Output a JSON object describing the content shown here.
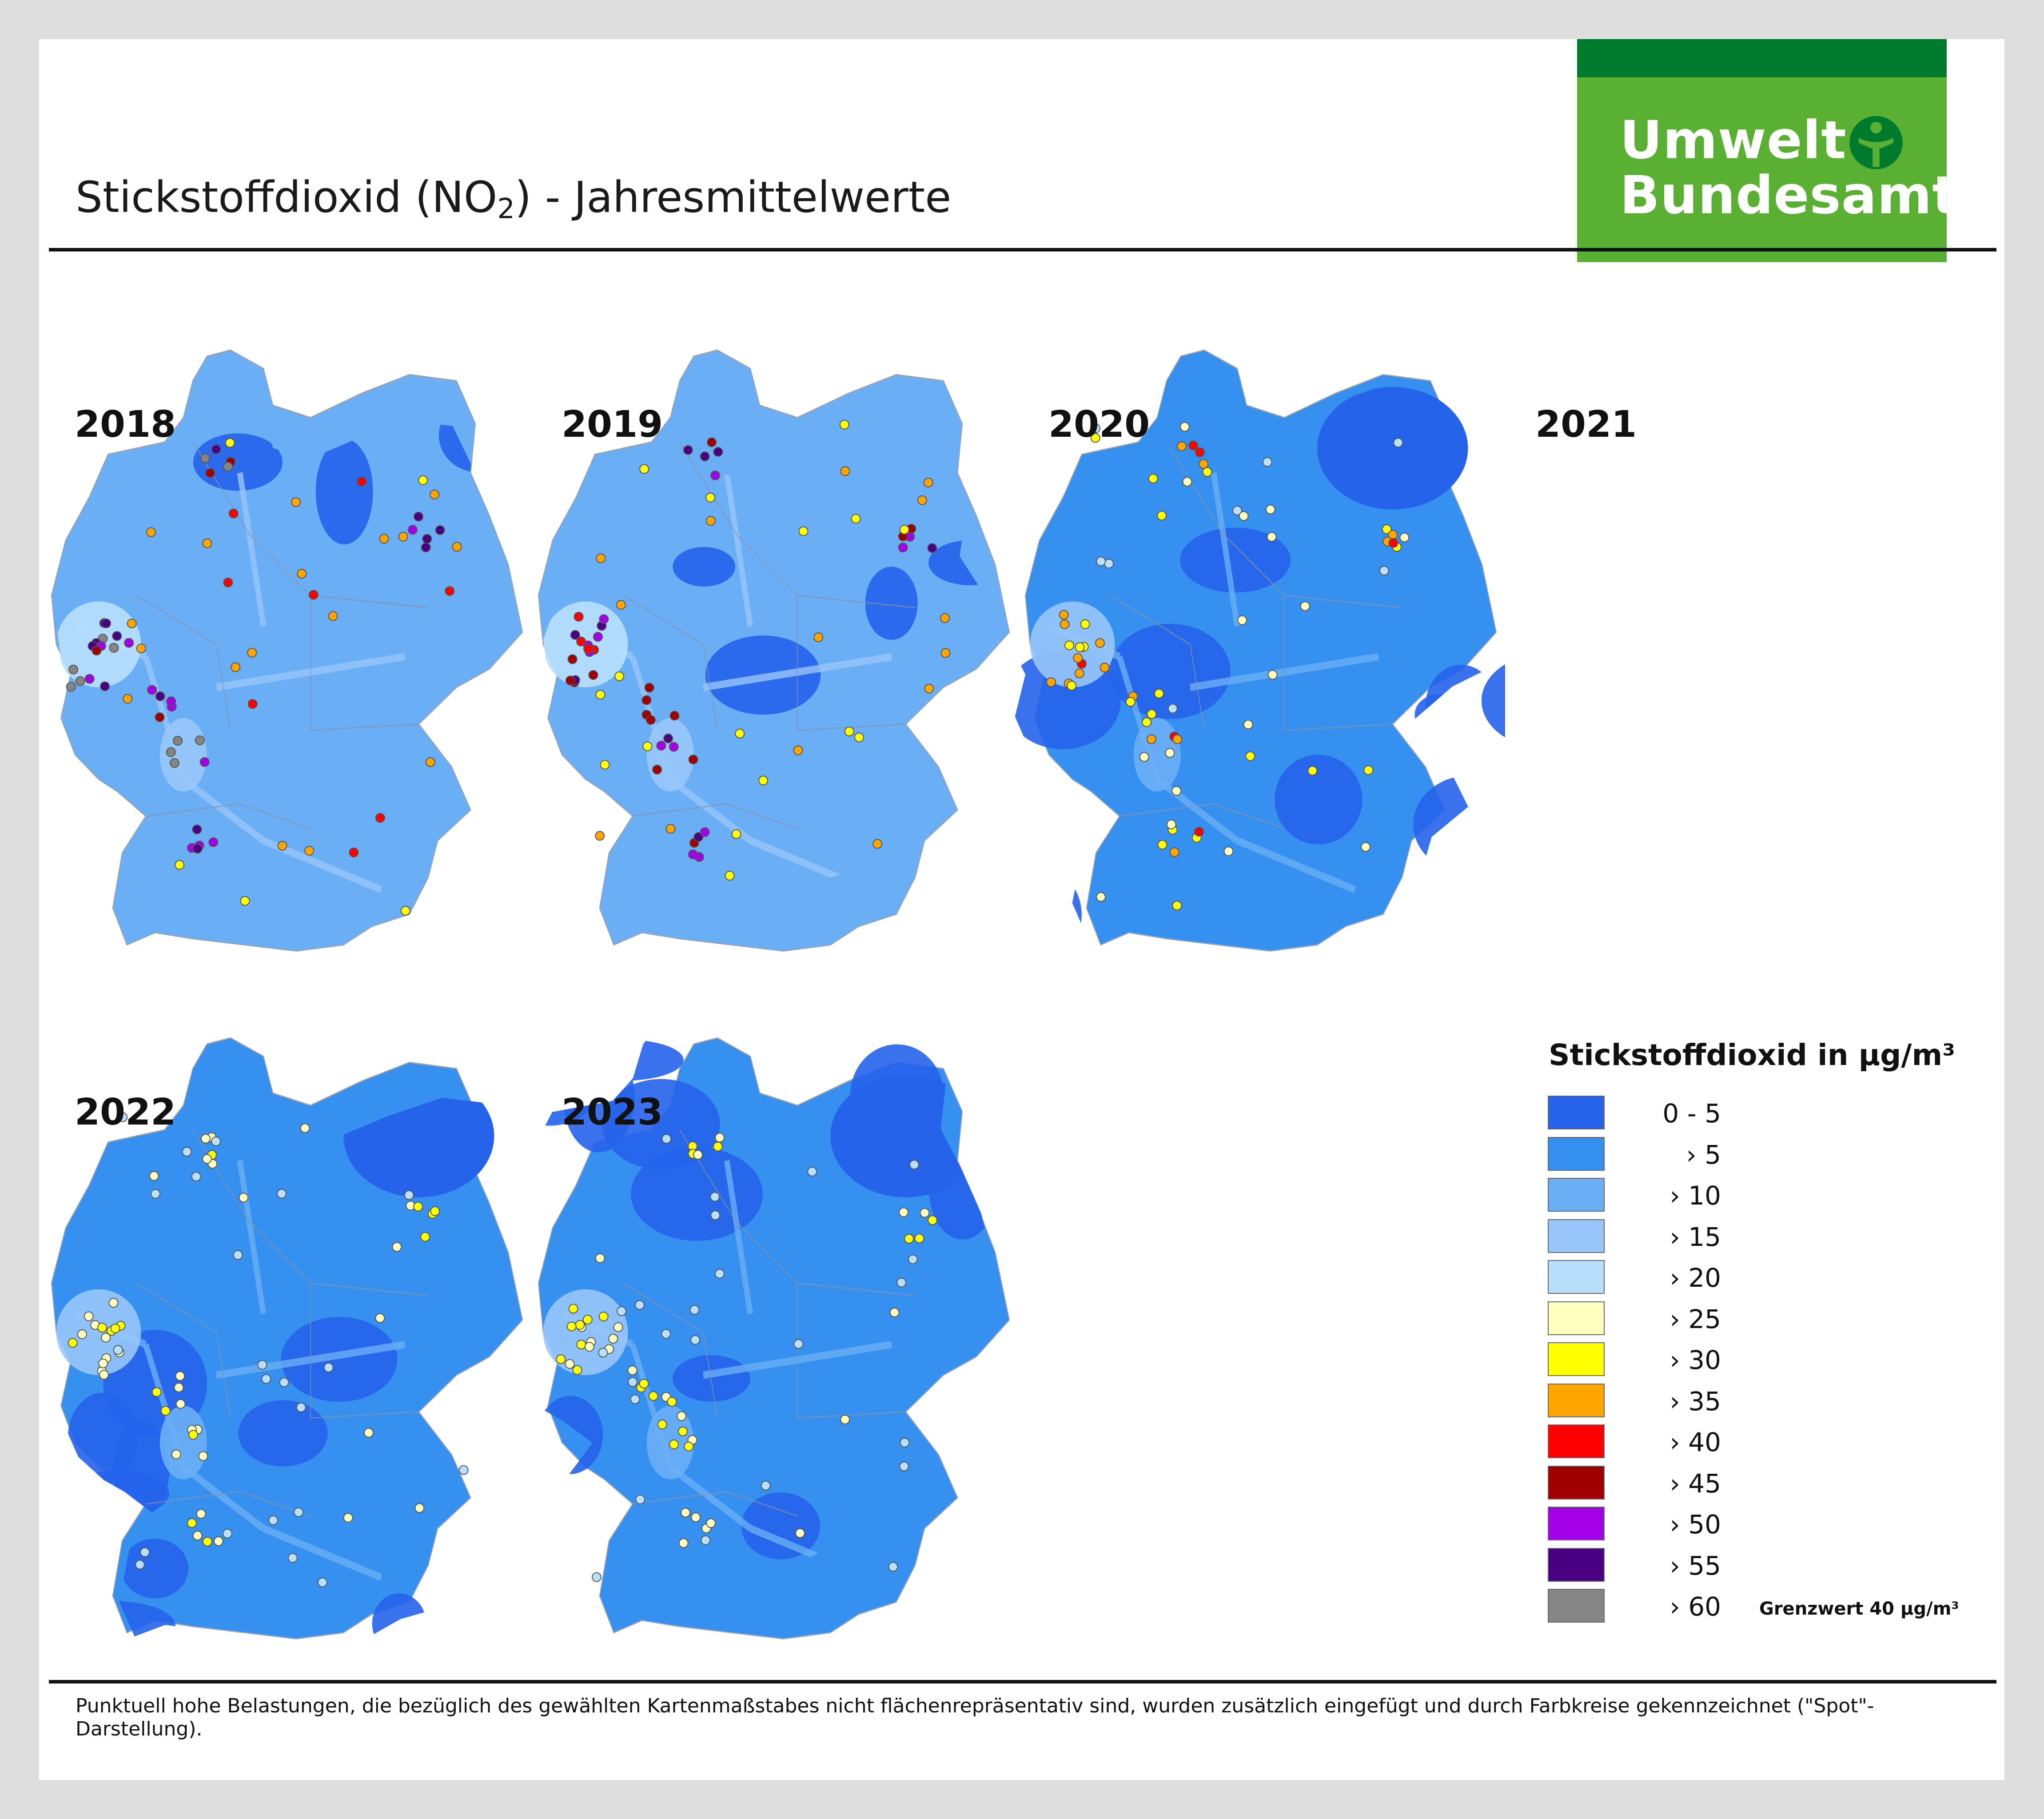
{
  "header": {
    "title_main": "Stickstoffdioxid (NO",
    "title_sub": "2",
    "title_end": ") - Jahresmittelwerte"
  },
  "logo": {
    "line1": "Umwelt",
    "line2": "Bundesamt",
    "figure_icon": "human-figure-in-circle-icon"
  },
  "maps": [
    {
      "year": "2018",
      "level": 6
    },
    {
      "year": "2019",
      "level": 5
    },
    {
      "year": "2020",
      "level": 2
    },
    {
      "year": "2021",
      "level": 1
    },
    {
      "year": "2022",
      "level": 0
    },
    {
      "year": "2023",
      "level": 0
    }
  ],
  "legend": {
    "title": "Stickstoffdioxid in µg/m³",
    "classes": [
      {
        "label": "0 - 5",
        "color": "#2563eb"
      },
      {
        "label": "› 5",
        "color": "#3590f0"
      },
      {
        "label": "› 10",
        "color": "#6aaef6"
      },
      {
        "label": "› 15",
        "color": "#98c6fb"
      },
      {
        "label": "› 20",
        "color": "#b8e0fd"
      },
      {
        "label": "› 25",
        "color": "#ffffc0"
      },
      {
        "label": "› 30",
        "color": "#ffff00"
      },
      {
        "label": "› 35",
        "color": "#ffa500"
      },
      {
        "label": "› 40",
        "color": "#ff0000"
      },
      {
        "label": "› 45",
        "color": "#a00000"
      },
      {
        "label": "› 50",
        "color": "#a400e8"
      },
      {
        "label": "› 55",
        "color": "#4a0082"
      },
      {
        "label": "› 60",
        "color": "#858585"
      }
    ],
    "limit_note": "Grenzwert 40 µg/m³"
  },
  "footnote": "Punktuell hohe Belastungen, die bezüglich des gewählten Kartenmaßstabes nicht flächenrepräsentativ sind, wurden zusätzlich eingefügt und durch Farbkreise gekennzeichnet (\"Spot\"-Darstellung)."
}
